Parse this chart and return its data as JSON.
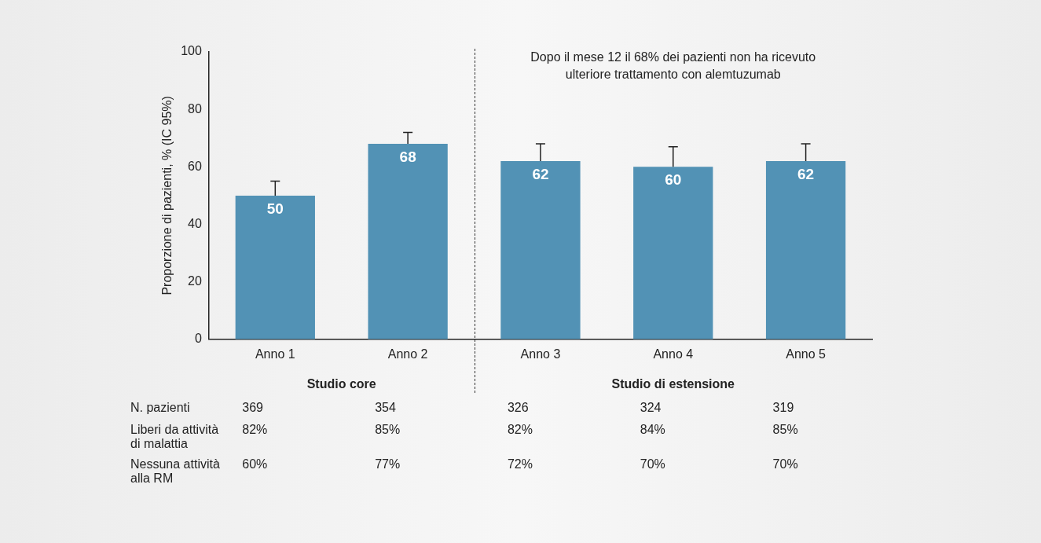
{
  "chart_data": {
    "type": "bar",
    "ylabel": "Proporzione di pazienti, % (IC 95%)",
    "categories": [
      "Anno 1",
      "Anno 2",
      "Anno 3",
      "Anno 4",
      "Anno 5"
    ],
    "values": [
      50,
      68,
      62,
      60,
      62
    ],
    "color": "#5292b5",
    "errors": [
      [
        50,
        55
      ],
      [
        68,
        72
      ],
      [
        62,
        68
      ],
      [
        60,
        67
      ],
      [
        62,
        68
      ]
    ],
    "data_labels": true,
    "ylim": [
      0,
      100
    ],
    "yticks": [
      0,
      20,
      40,
      60,
      80,
      100
    ],
    "grid": false,
    "legend": false,
    "annotations": [
      "Dopo il mese 12 il 68% dei pazienti non ha ricevuto ulteriore trattamento con alemtuzumab",
      "Studio core",
      "Studio di estensione",
      "N. pazienti",
      "369",
      "354",
      "326",
      "324",
      "319",
      "Liberi da attività di malattia",
      "82%",
      "85%",
      "82%",
      "84%",
      "85%",
      "Nessuna attività alla RM",
      "60%",
      "77%",
      "72%",
      "70%",
      "70%"
    ]
  }
}
